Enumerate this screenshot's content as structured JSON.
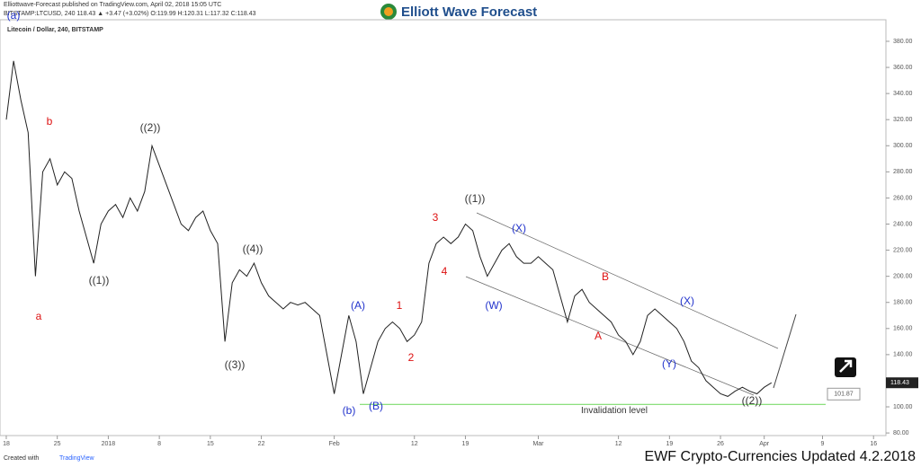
{
  "header": {
    "publisher": "Elliottwave-Forecast published on TradingView.com, April 02, 2018 15:05 UTC",
    "quote": "BITSTAMP:LTCUSD, 240  118.43 ▲ +3.47 (+3.02%) O:119.99 H:120.31 L:117.32 C:118.43",
    "logo": "Elliott Wave Forecast"
  },
  "chart_data": {
    "type": "line",
    "title": "Litecoin / Dollar, 240, BITSTAMP",
    "color": "#222222",
    "x": [
      0,
      1,
      2,
      3,
      4,
      5,
      6,
      7,
      8,
      9,
      10,
      11,
      12,
      13,
      14,
      15,
      16,
      17,
      18,
      19,
      20,
      21,
      22,
      23,
      24,
      25,
      26,
      27,
      28,
      29,
      30,
      31,
      32,
      33,
      34,
      35,
      36,
      37,
      38,
      39,
      40,
      41,
      42,
      43,
      44,
      45,
      46,
      47,
      48,
      49,
      50,
      51,
      52,
      53,
      54,
      55,
      56,
      57,
      58,
      59,
      60,
      61,
      62,
      63,
      64,
      65,
      66,
      67,
      68,
      69,
      70,
      71,
      72,
      73,
      74,
      75,
      76,
      77,
      78,
      79,
      80,
      81,
      82,
      83,
      84,
      85,
      86,
      87,
      88,
      89,
      90,
      91,
      92,
      93,
      94,
      95,
      96,
      97,
      98,
      99,
      100,
      101,
      102,
      103,
      104,
      105
    ],
    "values": [
      320,
      365,
      335,
      310,
      200,
      280,
      290,
      270,
      280,
      275,
      250,
      230,
      210,
      240,
      250,
      255,
      245,
      260,
      250,
      265,
      300,
      285,
      270,
      255,
      240,
      235,
      245,
      250,
      235,
      225,
      150,
      195,
      205,
      200,
      210,
      195,
      185,
      180,
      175,
      180,
      178,
      180,
      175,
      170,
      140,
      110,
      140,
      170,
      150,
      110,
      130,
      150,
      160,
      165,
      160,
      150,
      155,
      165,
      210,
      225,
      230,
      225,
      230,
      240,
      235,
      215,
      200,
      210,
      220,
      225,
      215,
      210,
      210,
      215,
      210,
      205,
      185,
      165,
      185,
      190,
      180,
      175,
      170,
      165,
      155,
      150,
      140,
      150,
      170,
      175,
      170,
      165,
      160,
      150,
      135,
      130,
      120,
      115,
      110,
      108,
      112,
      115,
      112,
      110,
      115,
      118.43
    ],
    "xlim": [
      -0.86,
      120.7
    ],
    "xticks": [
      {
        "value": 0,
        "label": "18"
      },
      {
        "value": 7,
        "label": "25"
      },
      {
        "value": 14,
        "label": "2018"
      },
      {
        "value": 21,
        "label": "8"
      },
      {
        "value": 28,
        "label": "15"
      },
      {
        "value": 35,
        "label": "22"
      },
      {
        "value": 45,
        "label": "Feb"
      },
      {
        "value": 56,
        "label": "12"
      },
      {
        "value": 63,
        "label": "19"
      },
      {
        "value": 73,
        "label": "Mar"
      },
      {
        "value": 84,
        "label": "12"
      },
      {
        "value": 91,
        "label": "19"
      },
      {
        "value": 98,
        "label": "26"
      },
      {
        "value": 104,
        "label": "Apr"
      },
      {
        "value": 112,
        "label": "9"
      },
      {
        "value": 119,
        "label": "16"
      }
    ],
    "ylim": [
      78,
      396.5
    ],
    "yticks": [
      {
        "value": 80,
        "label": "80.00"
      },
      {
        "value": 100,
        "label": "100.00"
      },
      {
        "value": 120,
        "label": "120.00"
      },
      {
        "value": 140,
        "label": "140.00"
      },
      {
        "value": 160,
        "label": "160.00"
      },
      {
        "value": 180,
        "label": "180.00"
      },
      {
        "value": 200,
        "label": "200.00"
      },
      {
        "value": 220,
        "label": "220.00"
      },
      {
        "value": 240,
        "label": "240.00"
      },
      {
        "value": 260,
        "label": "260.00"
      },
      {
        "value": 280,
        "label": "280.00"
      },
      {
        "value": 300,
        "label": "300.00"
      },
      {
        "value": 320,
        "label": "320.00"
      },
      {
        "value": 340,
        "label": "340.00"
      },
      {
        "value": 360,
        "label": "360.00"
      },
      {
        "value": 380,
        "label": "380.00"
      }
    ],
    "last_price": 118.43,
    "invalidation": {
      "value": 101.87,
      "label": "101.87",
      "text": "Invalidation level",
      "color": "#7ddc6b"
    },
    "annotations": [
      {
        "text": "(a)",
        "color": "#2233cc"
      },
      {
        "text": "a",
        "color": "#dd1111"
      },
      {
        "text": "b",
        "color": "#dd1111"
      },
      {
        "text": "((1))",
        "color": "#333333"
      },
      {
        "text": "((2))",
        "color": "#333333"
      },
      {
        "text": "((3))",
        "color": "#333333"
      },
      {
        "text": "((4))",
        "color": "#333333"
      },
      {
        "text": "(A)",
        "color": "#2233cc"
      },
      {
        "text": "(b)",
        "color": "#2233cc"
      },
      {
        "text": "(B)",
        "color": "#2233cc"
      },
      {
        "text": "1",
        "color": "#dd1111"
      },
      {
        "text": "2",
        "color": "#dd1111"
      },
      {
        "text": "3",
        "color": "#dd1111"
      },
      {
        "text": "4",
        "color": "#dd1111"
      },
      {
        "text": "((1))",
        "color": "#333333"
      },
      {
        "text": "(X)",
        "color": "#2233cc"
      },
      {
        "text": "(W)",
        "color": "#2233cc"
      },
      {
        "text": "B",
        "color": "#dd1111"
      },
      {
        "text": "A",
        "color": "#dd1111"
      },
      {
        "text": "(X)",
        "color": "#2233cc"
      },
      {
        "text": "(Y)",
        "color": "#2233cc"
      },
      {
        "text": "((2))",
        "color": "#333333"
      }
    ]
  },
  "footer": {
    "created": "Created with",
    "brand": "TradingView",
    "caption": "EWF Crypto-Currencies Updated 4.2.2018"
  }
}
